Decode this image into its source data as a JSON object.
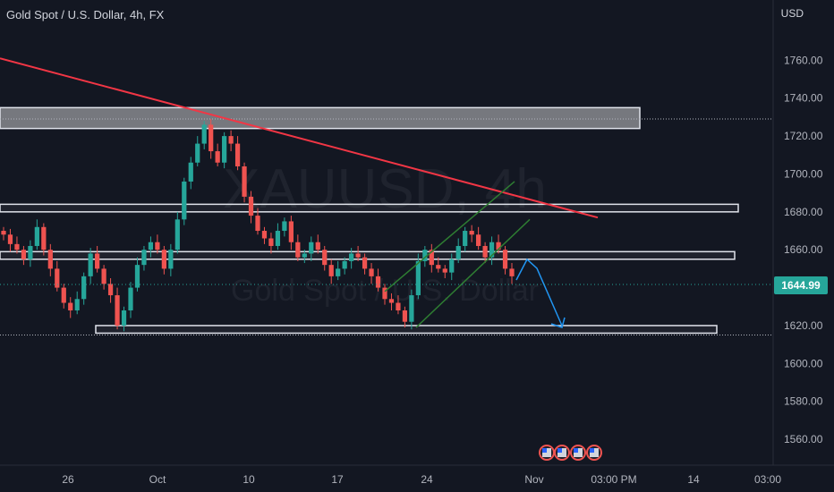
{
  "header": {
    "title": "Gold Spot / U.S. Dollar, 4h, FX",
    "currency": "USD"
  },
  "watermark": {
    "symbol": "XAUUSD, 4h",
    "name": "Gold Spot / U.S. Dollar"
  },
  "last_price": "1644.99",
  "colors": {
    "background": "#131722",
    "up": "#26a69a",
    "down": "#ef5350",
    "trendline": "#f23645",
    "channel": "#2e7d32",
    "arrow": "#2196f3",
    "zone": "#ffffff"
  },
  "chart_data": {
    "type": "candlestick",
    "title": "Gold Spot / U.S. Dollar, 4h, FX",
    "ylim": [
      1552,
      1780
    ],
    "y_ticks": [
      "1560.00",
      "1580.00",
      "1600.00",
      "1620.00",
      "1640.00",
      "1660.00",
      "1680.00",
      "1700.00",
      "1720.00",
      "1740.00",
      "1760.00"
    ],
    "x_ticks": [
      "26",
      "Oct",
      "10",
      "17",
      "24",
      "Nov",
      "03:00 PM",
      "14",
      "03:00"
    ],
    "series": [
      {
        "name": "XAUUSD",
        "values": [
          1668,
          1663,
          1660,
          1655,
          1662,
          1672,
          1660,
          1650,
          1640,
          1632,
          1628,
          1634,
          1646,
          1658,
          1650,
          1642,
          1636,
          1620,
          1628,
          1640,
          1652,
          1660,
          1664,
          1660,
          1650,
          1660,
          1676,
          1696,
          1706,
          1716,
          1726,
          1712,
          1706,
          1720,
          1716,
          1704,
          1688,
          1678,
          1670,
          1666,
          1662,
          1670,
          1675,
          1664,
          1656,
          1658,
          1664,
          1660,
          1652,
          1646,
          1650,
          1654,
          1658,
          1656,
          1650,
          1646,
          1640,
          1634,
          1632,
          1628,
          1622,
          1636,
          1654,
          1660,
          1652,
          1650,
          1648,
          1655,
          1662,
          1670,
          1668,
          1662,
          1656,
          1664,
          1660,
          1650,
          1646
        ]
      }
    ],
    "lines": {
      "resistance_trendline": {
        "from": [
          "2022-09-15",
          1761
        ],
        "to": [
          "2022-11-06",
          1677
        ]
      },
      "zones": [
        {
          "low": 1724,
          "high": 1735
        },
        {
          "low": 1680,
          "high": 1684
        },
        {
          "low": 1655,
          "high": 1659
        },
        {
          "low": 1616,
          "high": 1620
        }
      ]
    },
    "grid": false,
    "legend": "none"
  }
}
